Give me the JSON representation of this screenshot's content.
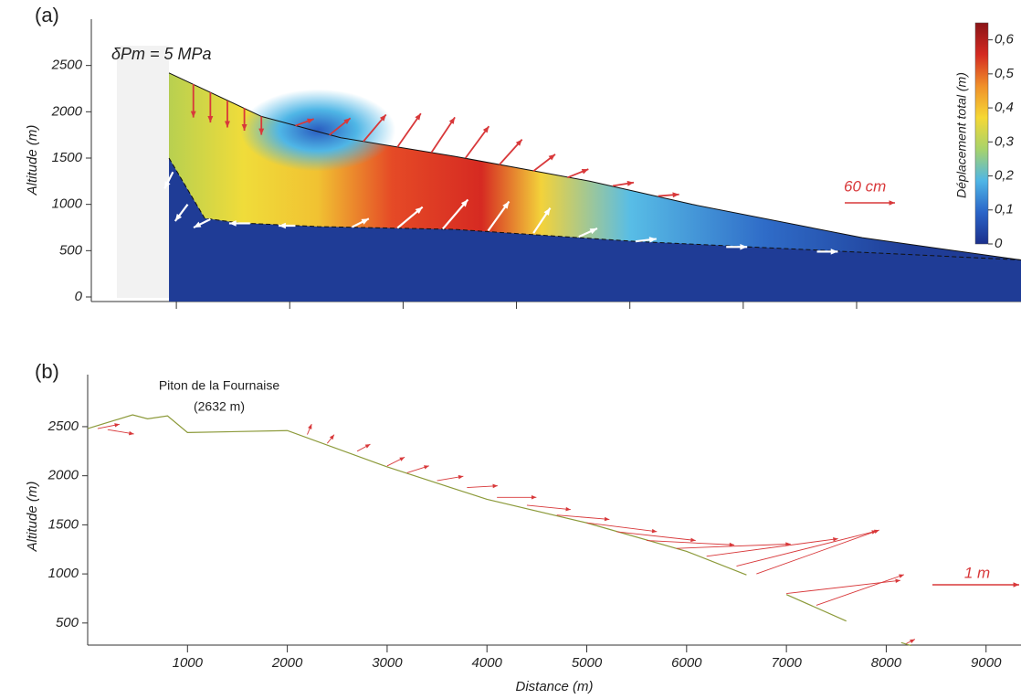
{
  "chart_data": [
    {
      "type": "field",
      "label": "(a)",
      "annotation": "δPm = 5 MPa",
      "ylabel": "Altitude (m)",
      "xlim": [
        0,
        8200
      ],
      "ylim": [
        0,
        3000
      ],
      "xticks": [
        750,
        1750,
        2750,
        3750,
        4750,
        5750,
        6750
      ],
      "yticks": [
        0,
        500,
        1000,
        1500,
        2000,
        2500
      ],
      "surface": {
        "x": [
          685,
          1500,
          2200,
          3200,
          4400,
          5300,
          6800,
          8200
        ],
        "y": [
          2420,
          1950,
          1720,
          1520,
          1250,
          1000,
          640,
          400
        ],
        "color": "#111111"
      },
      "interface": {
        "x": [
          685,
          1000,
          1300,
          2000,
          3200,
          4800,
          8200
        ],
        "y": [
          1500,
          850,
          800,
          760,
          730,
          600,
          400
        ],
        "color": "#111111"
      },
      "fill_color": "#1f3c96",
      "arrows": {
        "color": "#d8383a",
        "values": [
          [
            900,
            2300,
            0,
            -0.4
          ],
          [
            1050,
            2210,
            0,
            -0.36
          ],
          [
            1200,
            2120,
            0,
            -0.32
          ],
          [
            1350,
            2040,
            0,
            -0.27
          ],
          [
            1500,
            1950,
            0,
            -0.22
          ],
          [
            1800,
            1850,
            0.22,
            0.08
          ],
          [
            2100,
            1750,
            0.25,
            0.2
          ],
          [
            2400,
            1680,
            0.27,
            0.32
          ],
          [
            2700,
            1620,
            0.28,
            0.4
          ],
          [
            3000,
            1560,
            0.28,
            0.42
          ],
          [
            3300,
            1500,
            0.28,
            0.38
          ],
          [
            3600,
            1430,
            0.27,
            0.3
          ],
          [
            3900,
            1360,
            0.26,
            0.2
          ],
          [
            4200,
            1290,
            0.25,
            0.1
          ],
          [
            4600,
            1200,
            0.25,
            0.04
          ],
          [
            5000,
            1090,
            0.25,
            0.02
          ]
        ]
      },
      "interface_arrows": {
        "color": "#ffffff",
        "values": [
          [
            720,
            1350,
            -0.1,
            -0.2
          ],
          [
            850,
            1000,
            -0.15,
            -0.2
          ],
          [
            1050,
            840,
            -0.2,
            -0.1
          ],
          [
            1400,
            795,
            -0.25,
            0.0
          ],
          [
            1800,
            770,
            -0.2,
            0.0
          ],
          [
            2300,
            755,
            0.2,
            0.1
          ],
          [
            2700,
            745,
            0.3,
            0.25
          ],
          [
            3100,
            735,
            0.3,
            0.35
          ],
          [
            3500,
            715,
            0.25,
            0.35
          ],
          [
            3900,
            690,
            0.2,
            0.3
          ],
          [
            4300,
            650,
            0.22,
            0.1
          ],
          [
            4800,
            600,
            0.25,
            0.03
          ],
          [
            5600,
            540,
            0.25,
            0.0
          ],
          [
            6400,
            490,
            0.25,
            0.0
          ]
        ]
      },
      "scale_arrow": {
        "label": "60 cm",
        "value": 0.6,
        "color": "#d8383a"
      },
      "colorbar": {
        "label": "Déplacement total (m)",
        "clim": [
          0,
          0.65
        ],
        "colors": [
          "#1b2f8c",
          "#2a64c8",
          "#4fb6e6",
          "#a7d36b",
          "#f5d835",
          "#f0902a",
          "#d42a22",
          "#8a1417"
        ],
        "ticks": [
          0,
          {
            "value": 0.1,
            "label": "0,1"
          },
          {
            "value": 0.2,
            "label": "0,2"
          },
          {
            "value": 0.3,
            "label": "0,3"
          },
          {
            "value": 0.4,
            "label": "0,4"
          },
          {
            "value": 0.5,
            "label": "0,5"
          },
          {
            "value": 0.6,
            "label": "0,6"
          }
        ]
      }
    },
    {
      "type": "line",
      "label": "(b)",
      "ylabel": "Altitude (m)",
      "xlabel": "Distance (m)",
      "annotation": "Piton de la Fournaise",
      "annotation_sub": "(2632 m)",
      "xlim": [
        0,
        9350
      ],
      "ylim": [
        275,
        3030
      ],
      "xticks": [
        1000,
        2000,
        3000,
        4000,
        5000,
        6000,
        7000,
        8000,
        9000
      ],
      "yticks": [
        500,
        1000,
        1500,
        2000,
        2500
      ],
      "x": [
        0,
        450,
        600,
        800,
        1000,
        2000,
        3000,
        4000,
        5000,
        6000,
        6600,
        6800,
        7000,
        7600,
        7900,
        8150,
        8250
      ],
      "y": [
        2480,
        2620,
        2580,
        2610,
        2440,
        2460,
        2090,
        1760,
        1520,
        1230,
        990,
        null,
        790,
        520,
        null,
        300,
        270
      ],
      "color": "#8c9a3a",
      "arrows": {
        "color": "#d8383a",
        "values": [
          [
            100,
            2480,
            0.25,
            0.05
          ],
          [
            200,
            2470,
            0.3,
            -0.05
          ],
          [
            2200,
            2420,
            0.05,
            0.12
          ],
          [
            2400,
            2330,
            0.08,
            0.1
          ],
          [
            2700,
            2250,
            0.15,
            0.08
          ],
          [
            3000,
            2100,
            0.2,
            0.1
          ],
          [
            3200,
            2030,
            0.25,
            0.08
          ],
          [
            3500,
            1950,
            0.3,
            0.05
          ],
          [
            3800,
            1880,
            0.35,
            0.02
          ],
          [
            4100,
            1780,
            0.45,
            0.0
          ],
          [
            4400,
            1700,
            0.5,
            -0.05
          ],
          [
            4700,
            1600,
            0.6,
            -0.05
          ],
          [
            5000,
            1520,
            0.8,
            -0.1
          ],
          [
            5300,
            1430,
            0.9,
            -0.1
          ],
          [
            5600,
            1340,
            1.0,
            -0.05
          ],
          [
            5900,
            1260,
            1.3,
            0.05
          ],
          [
            6200,
            1180,
            1.5,
            0.2
          ],
          [
            6500,
            1080,
            1.6,
            0.4
          ],
          [
            6700,
            1000,
            1.4,
            0.5
          ],
          [
            7000,
            800,
            1.3,
            0.15
          ],
          [
            7300,
            680,
            1.0,
            0.35
          ],
          [
            8200,
            290,
            0.1,
            0.05
          ]
        ]
      },
      "scale_arrow": {
        "label": "1 m",
        "value": 1,
        "color": "#d8383a"
      }
    }
  ]
}
